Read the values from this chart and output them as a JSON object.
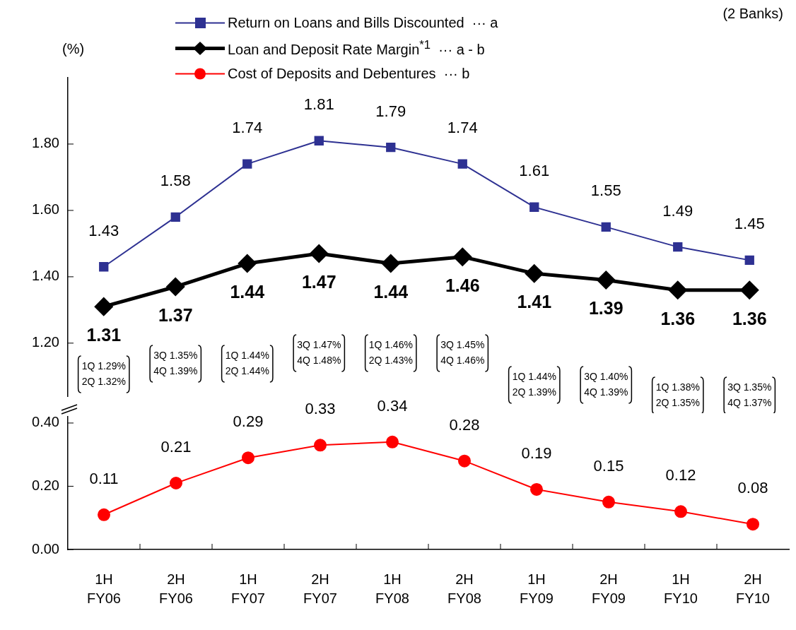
{
  "chart_data": [
    {
      "type": "line",
      "ylabel": "(%)",
      "legend": "top",
      "tick_labels": "y",
      "ylim": [
        1.04,
        2.0
      ],
      "yticks": [
        {
          "value": 1.2,
          "label": "1.20"
        },
        {
          "value": 1.4,
          "label": "1.40"
        },
        {
          "value": 1.6,
          "label": "1.60"
        },
        {
          "value": 1.8,
          "label": "1.80"
        }
      ],
      "series": [
        {
          "name": "Return on Loans and Bills Discounted  ··· a",
          "color": "#2e3192",
          "marker": "square",
          "values": [
            1.43,
            1.58,
            1.74,
            1.81,
            1.79,
            1.74,
            1.61,
            1.55,
            1.49,
            1.45
          ],
          "value_labels": [
            "1.43",
            "1.58",
            "1.74",
            "1.81",
            "1.79",
            "1.74",
            "1.61",
            "1.55",
            "1.49",
            "1.45"
          ]
        },
        {
          "name": "Loan and Deposit Rate Margin$^{*1}$  ··· a - b",
          "color": "#000000",
          "marker": "diamond",
          "values": [
            1.31,
            1.37,
            1.44,
            1.47,
            1.44,
            1.46,
            1.41,
            1.39,
            1.36,
            1.36
          ],
          "value_labels": [
            "1.31",
            "1.37",
            "1.44",
            "1.47",
            "1.44",
            "1.46",
            "1.41",
            "1.39",
            "1.36",
            "1.36"
          ]
        }
      ],
      "subtitle": "(2 Banks)",
      "annotations": [
        "1Q 1.29%\n2Q 1.32%",
        "3Q 1.35%\n4Q 1.39%",
        "1Q 1.44%\n2Q 1.44%",
        "3Q 1.47%\n4Q 1.48%",
        "1Q 1.46%\n2Q 1.43%",
        "3Q 1.45%\n4Q 1.46%",
        "1Q 1.44%\n2Q 1.39%",
        "3Q 1.40%\n4Q 1.39%",
        "1Q 1.38%\n2Q 1.35%",
        "3Q 1.35%\n4Q 1.37%"
      ]
    },
    {
      "type": "line",
      "legend": "top",
      "categories": [
        "1H FY06",
        "2H FY06",
        "1H FY07",
        "2H FY07",
        "1H FY08",
        "2H FY08",
        "1H FY09",
        "2H FY09",
        "1H FY10",
        "2H FY10"
      ],
      "ylim": [
        0,
        0.42
      ],
      "yticks": [
        {
          "value": 0,
          "label": "0.00"
        },
        {
          "value": 0.2,
          "label": "0.20"
        },
        {
          "value": 0.4,
          "label": "0.40"
        }
      ],
      "series": [
        {
          "name": "Cost of Deposits and Debentures  ··· b",
          "color": "#ff0000",
          "marker": "circle",
          "values": [
            0.11,
            0.21,
            0.29,
            0.33,
            0.34,
            0.28,
            0.19,
            0.15,
            0.12,
            0.08
          ],
          "value_labels": [
            "0.11",
            "0.21",
            "0.29",
            "0.33",
            "0.34",
            "0.28",
            "0.19",
            "0.15",
            "0.12",
            "0.08"
          ]
        }
      ]
    }
  ]
}
